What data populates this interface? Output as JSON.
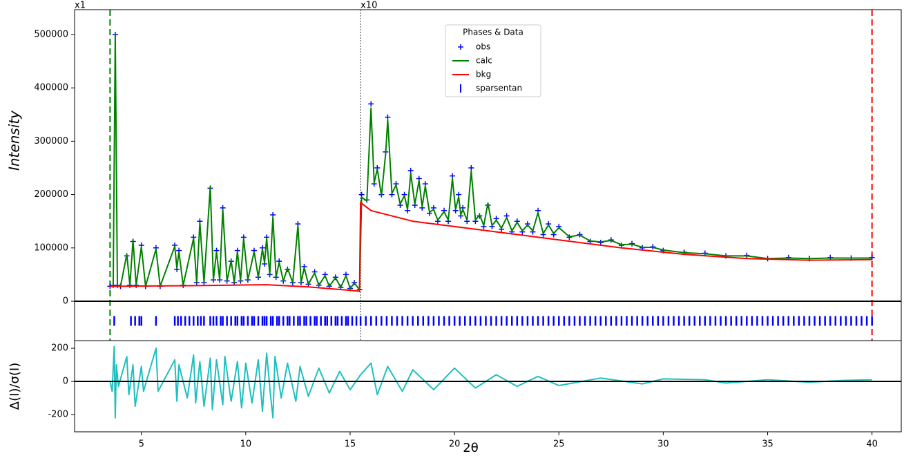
{
  "chart_data": [
    {
      "type": "line",
      "ylabel": "Intensity",
      "xlim": [
        1.8,
        41.4
      ],
      "ylim": [
        -73800,
        546600
      ],
      "yticks": [
        0,
        100000,
        200000,
        300000,
        400000,
        500000
      ],
      "hlines": [
        0
      ],
      "vlines": [
        {
          "x": 3.5,
          "color": "#008000",
          "dash": "dashed"
        },
        {
          "x": 15.5,
          "color": "#555555",
          "dash": "dotted"
        },
        {
          "x": 40,
          "color": "#ff0000",
          "dash": "dashed"
        }
      ],
      "annotations": [
        {
          "text": "x1",
          "x": 1.8
        },
        {
          "text": "x10",
          "x": 15.5
        }
      ],
      "legend": {
        "title": "Phases & Data",
        "location": "upper center"
      },
      "series": [
        {
          "name": "obs",
          "color": "#0000ff",
          "style": "markers",
          "x": [
            3.5,
            3.65,
            3.75,
            3.85,
            4.0,
            4.3,
            4.45,
            4.6,
            4.75,
            5.0,
            5.2,
            5.7,
            5.9,
            6.6,
            6.7,
            6.8,
            7.0,
            7.5,
            7.65,
            7.8,
            8.0,
            8.3,
            8.45,
            8.6,
            8.75,
            8.9,
            9.1,
            9.3,
            9.45,
            9.6,
            9.75,
            9.9,
            10.1,
            10.4,
            10.6,
            10.8,
            10.9,
            11.0,
            11.15,
            11.3,
            11.45,
            11.6,
            11.8,
            12.0,
            12.25,
            12.5,
            12.65,
            12.8,
            13.0,
            13.3,
            13.5,
            13.8,
            14.0,
            14.3,
            14.55,
            14.8,
            15.0,
            15.2,
            15.45,
            15.55,
            15.8,
            16.0,
            16.15,
            16.3,
            16.5,
            16.7,
            16.8,
            17.0,
            17.2,
            17.4,
            17.6,
            17.75,
            17.9,
            18.1,
            18.3,
            18.45,
            18.6,
            18.8,
            19.0,
            19.2,
            19.5,
            19.7,
            19.9,
            20.05,
            20.2,
            20.3,
            20.4,
            20.6,
            20.8,
            21.0,
            21.2,
            21.4,
            21.6,
            21.8,
            22.0,
            22.25,
            22.5,
            22.75,
            23.0,
            23.25,
            23.5,
            23.75,
            24.0,
            24.25,
            24.5,
            24.75,
            25.0,
            25.5,
            26.0,
            26.5,
            27.0,
            27.5,
            28.0,
            28.5,
            29.0,
            29.5,
            30.0,
            31.0,
            32.0,
            33.0,
            34.0,
            35.0,
            36.0,
            37.0,
            38.0,
            39.0,
            40.0
          ],
          "values": [
            28000,
            30000,
            500000,
            30000,
            28000,
            85000,
            30000,
            112000,
            30000,
            105000,
            28000,
            100000,
            28000,
            105000,
            60000,
            95000,
            30000,
            120000,
            35000,
            150000,
            35000,
            212000,
            40000,
            95000,
            40000,
            175000,
            38000,
            75000,
            35000,
            95000,
            38000,
            120000,
            40000,
            95000,
            45000,
            100000,
            70000,
            120000,
            50000,
            162000,
            45000,
            75000,
            38000,
            60000,
            35000,
            145000,
            35000,
            65000,
            32000,
            55000,
            30000,
            50000,
            28000,
            45000,
            26000,
            50000,
            24000,
            35000,
            22000,
            200000,
            190000,
            370000,
            220000,
            250000,
            200000,
            280000,
            345000,
            200000,
            220000,
            180000,
            200000,
            170000,
            245000,
            180000,
            230000,
            175000,
            220000,
            165000,
            175000,
            150000,
            170000,
            150000,
            235000,
            170000,
            200000,
            160000,
            175000,
            150000,
            250000,
            150000,
            160000,
            140000,
            180000,
            140000,
            155000,
            135000,
            160000,
            130000,
            150000,
            130000,
            145000,
            130000,
            170000,
            125000,
            145000,
            125000,
            140000,
            120000,
            125000,
            112000,
            110000,
            115000,
            105000,
            108000,
            100000,
            102000,
            95000,
            92000,
            90000,
            85000,
            86000,
            80000,
            82000,
            80000,
            82000,
            81000,
            82000
          ]
        },
        {
          "name": "calc",
          "color": "#008000",
          "style": "line",
          "x": [
            3.5,
            3.65,
            3.75,
            3.85,
            4.0,
            4.3,
            4.45,
            4.6,
            4.75,
            5.0,
            5.2,
            5.7,
            5.9,
            6.6,
            6.7,
            6.8,
            7.0,
            7.5,
            7.65,
            7.8,
            8.0,
            8.3,
            8.45,
            8.6,
            8.75,
            8.9,
            9.1,
            9.3,
            9.45,
            9.6,
            9.75,
            9.9,
            10.1,
            10.4,
            10.6,
            10.8,
            10.9,
            11.0,
            11.15,
            11.3,
            11.45,
            11.6,
            11.8,
            12.0,
            12.25,
            12.5,
            12.65,
            12.8,
            13.0,
            13.3,
            13.5,
            13.8,
            14.0,
            14.3,
            14.55,
            14.8,
            15.0,
            15.2,
            15.45,
            15.55,
            15.8,
            16.0,
            16.15,
            16.3,
            16.5,
            16.7,
            16.8,
            17.0,
            17.2,
            17.4,
            17.6,
            17.75,
            17.9,
            18.1,
            18.3,
            18.45,
            18.6,
            18.8,
            19.0,
            19.2,
            19.5,
            19.7,
            19.9,
            20.05,
            20.2,
            20.3,
            20.4,
            20.6,
            20.8,
            21.0,
            21.2,
            21.4,
            21.6,
            21.8,
            22.0,
            22.25,
            22.5,
            22.75,
            23.0,
            23.25,
            23.5,
            23.75,
            24.0,
            24.25,
            24.5,
            24.75,
            25.0,
            25.5,
            26.0,
            26.5,
            27.0,
            27.5,
            28.0,
            28.5,
            29.0,
            29.5,
            30.0,
            31.0,
            32.0,
            33.0,
            34.0,
            35.0,
            36.0,
            37.0,
            38.0,
            39.0,
            40.0
          ],
          "values": [
            28000,
            30000,
            500000,
            30000,
            28000,
            88000,
            30000,
            115000,
            30000,
            102000,
            28000,
            98000,
            28000,
            103000,
            62000,
            93000,
            30000,
            118000,
            35000,
            148000,
            35000,
            215000,
            40000,
            93000,
            40000,
            172000,
            38000,
            76000,
            35000,
            93000,
            38000,
            118000,
            40000,
            93000,
            45000,
            98000,
            72000,
            118000,
            50000,
            158000,
            45000,
            73000,
            38000,
            62000,
            35000,
            142000,
            35000,
            63000,
            32000,
            53000,
            30000,
            48000,
            28000,
            44000,
            26000,
            48000,
            24000,
            34000,
            22000,
            195000,
            188000,
            362000,
            222000,
            248000,
            198000,
            276000,
            340000,
            202000,
            218000,
            182000,
            198000,
            172000,
            240000,
            182000,
            226000,
            177000,
            216000,
            167000,
            172000,
            152000,
            168000,
            152000,
            230000,
            172000,
            196000,
            162000,
            172000,
            152000,
            244000,
            152000,
            162000,
            142000,
            184000,
            142000,
            152000,
            137000,
            157000,
            132000,
            148000,
            132000,
            143000,
            132000,
            166000,
            127000,
            143000,
            127000,
            138000,
            121000,
            124000,
            113000,
            111000,
            114000,
            106000,
            107000,
            101000,
            101000,
            96000,
            91000,
            89000,
            85000,
            85000,
            80000,
            81000,
            80000,
            81000,
            81000,
            81000
          ]
        },
        {
          "name": "bkg",
          "color": "#ff0000",
          "style": "line",
          "x": [
            3.5,
            5,
            7,
            9,
            11,
            13,
            15.45,
            15.5,
            16,
            18,
            20,
            22,
            25,
            28,
            31,
            34,
            37,
            40
          ],
          "values": [
            28000,
            28500,
            29000,
            30000,
            31000,
            27000,
            19000,
            185000,
            170000,
            150000,
            140000,
            130000,
            115000,
            100000,
            88000,
            80000,
            77000,
            78000
          ]
        },
        {
          "name": "sparsentan",
          "color": "#0000ff",
          "style": "ticks",
          "x": [
            3.7,
            4.5,
            4.7,
            4.9,
            5.0,
            5.7,
            6.6,
            6.75,
            6.9,
            7.1,
            7.3,
            7.5,
            7.7,
            7.85,
            8.0,
            8.3,
            8.45,
            8.6,
            8.8,
            8.9,
            9.1,
            9.3,
            9.5,
            9.6,
            9.8,
            9.9,
            10.1,
            10.3,
            10.4,
            10.6,
            10.8,
            10.9,
            11.0,
            11.2,
            11.3,
            11.5,
            11.6,
            11.8,
            12.0,
            12.1,
            12.3,
            12.5,
            12.6,
            12.8,
            12.9,
            13.1,
            13.3,
            13.4,
            13.6,
            13.8,
            13.9,
            14.1,
            14.3,
            14.4,
            14.6,
            14.8,
            14.9,
            15.1,
            15.3,
            15.5,
            15.75,
            16,
            16.25,
            16.5,
            16.75,
            17,
            17.25,
            17.5,
            17.75,
            18,
            18.25,
            18.5,
            18.75,
            19,
            19.25,
            19.5,
            19.75,
            20,
            20.25,
            20.5,
            20.75,
            21,
            21.25,
            21.5,
            21.75,
            22,
            22.25,
            22.5,
            22.75,
            23,
            23.25,
            23.5,
            23.75,
            24,
            24.25,
            24.5,
            24.75,
            25,
            25.25,
            25.5,
            25.75,
            26,
            26.25,
            26.5,
            26.75,
            27,
            27.25,
            27.5,
            27.75,
            28,
            28.25,
            28.5,
            28.75,
            29,
            29.25,
            29.5,
            29.75,
            30,
            30.25,
            30.5,
            30.75,
            31,
            31.25,
            31.5,
            31.75,
            32,
            32.25,
            32.5,
            32.75,
            33,
            33.25,
            33.5,
            33.75,
            34,
            34.25,
            34.5,
            34.75,
            35,
            35.25,
            35.5,
            35.75,
            36,
            36.25,
            36.5,
            36.75,
            37,
            37.25,
            37.5,
            37.75,
            38,
            38.25,
            38.5,
            38.75,
            39,
            39.25,
            39.5,
            39.75,
            40
          ]
        }
      ]
    },
    {
      "type": "line",
      "ylabel": "Δ(I)/σ(I)",
      "xlabel": "2θ",
      "xlim": [
        1.8,
        41.4
      ],
      "ylim": [
        -304,
        246
      ],
      "xticks": [
        5,
        10,
        15,
        20,
        25,
        30,
        35,
        40
      ],
      "yticks": [
        -200,
        0,
        200
      ],
      "hlines": [
        0
      ],
      "series": [
        {
          "color": "#1fbfbf",
          "style": "line",
          "x": [
            3.5,
            3.6,
            3.7,
            3.75,
            3.8,
            3.9,
            4.3,
            4.4,
            4.6,
            4.7,
            5.0,
            5.1,
            5.7,
            5.8,
            6.6,
            6.7,
            6.8,
            7.2,
            7.5,
            7.6,
            7.8,
            8.0,
            8.3,
            8.4,
            8.6,
            8.9,
            9.0,
            9.3,
            9.6,
            9.8,
            10.0,
            10.3,
            10.6,
            10.8,
            11.0,
            11.2,
            11.3,
            11.4,
            11.7,
            12.0,
            12.4,
            12.6,
            13.0,
            13.5,
            14.0,
            14.5,
            15.0,
            15.5,
            16.0,
            16.3,
            16.8,
            17.5,
            18.0,
            19.0,
            20.0,
            21.0,
            22.0,
            23.0,
            24.0,
            25.0,
            27.0,
            29.0,
            30.0,
            32.0,
            33.0,
            35.0,
            37.0,
            38.5,
            40.0
          ],
          "values": [
            0,
            -60,
            210,
            -220,
            100,
            -30,
            150,
            -80,
            100,
            -150,
            90,
            -60,
            200,
            -60,
            130,
            -120,
            100,
            -100,
            160,
            -130,
            120,
            -150,
            140,
            -170,
            130,
            -140,
            150,
            -120,
            120,
            -160,
            110,
            -130,
            130,
            -180,
            170,
            -100,
            -220,
            150,
            -100,
            110,
            -120,
            90,
            -90,
            80,
            -70,
            60,
            -50,
            40,
            110,
            -80,
            90,
            -60,
            70,
            -50,
            80,
            -40,
            40,
            -30,
            30,
            -25,
            20,
            -15,
            15,
            10,
            -10,
            10,
            -5,
            5,
            10
          ]
        }
      ]
    }
  ]
}
